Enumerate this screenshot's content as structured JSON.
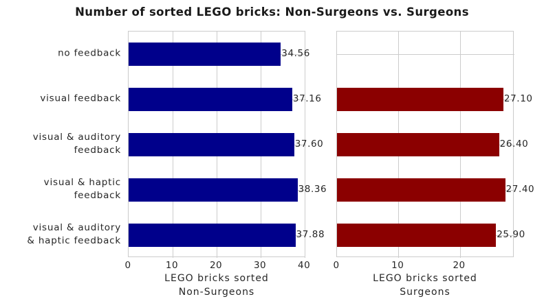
{
  "title": "Number of sorted LEGO bricks: Non-Surgeons vs. Surgeons",
  "chart_data": {
    "type": "bar",
    "orientation": "horizontal",
    "title": "Number of sorted LEGO bricks: Non-Surgeons vs. Surgeons",
    "grid": true,
    "categories": [
      "no feedback",
      "visual feedback",
      "visual & auditory\nfeedback",
      "visual & haptic\nfeedback",
      "visual & auditory\n& haptic feedback"
    ],
    "panels": [
      {
        "name": "non-surgeons",
        "xlabel": "LEGO bricks sorted\nNon-Surgeons",
        "bar_color": "#00008B",
        "values": [
          34.56,
          37.16,
          37.6,
          38.36,
          37.88
        ],
        "value_labels": [
          "34.56",
          "37.16",
          "37.60",
          "38.36",
          "37.88"
        ],
        "xticks": [
          0,
          10,
          20,
          30,
          40
        ],
        "xlim": [
          0,
          40.3
        ]
      },
      {
        "name": "surgeons",
        "xlabel": "LEGO bricks sorted\nSurgeons",
        "bar_color": "#8B0000",
        "values": [
          null,
          27.1,
          26.4,
          27.4,
          25.9
        ],
        "value_labels": [
          "",
          "27.10",
          "26.40",
          "27.40",
          "25.90"
        ],
        "xticks": [
          0,
          10,
          20
        ],
        "xlim": [
          0,
          28.9
        ]
      }
    ],
    "colors": {
      "non_surgeons_bar": "#00008B",
      "surgeons_bar": "#8B0000",
      "grid": "#cccccc",
      "text": "#262626"
    }
  }
}
